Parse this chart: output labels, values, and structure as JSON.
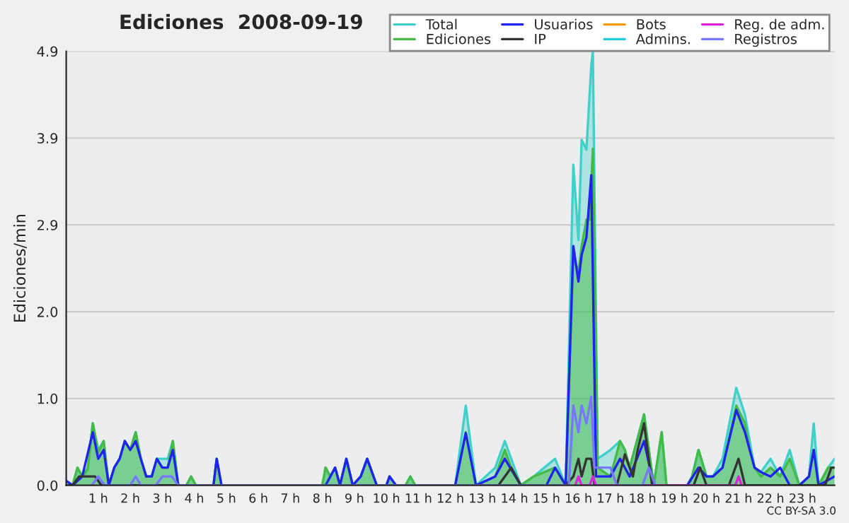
{
  "chart_data": {
    "type": "line",
    "title": "Ediciones  2008-09-19",
    "ylabel": "Ediciones/min",
    "annotations": [
      "CC BY-SA 3.0"
    ],
    "xlim": [
      0,
      24
    ],
    "ylim": [
      0,
      4.9
    ],
    "xticks": [
      {
        "value": 1,
        "label": "1 h"
      },
      {
        "value": 2,
        "label": "2 h"
      },
      {
        "value": 3,
        "label": "3 h"
      },
      {
        "value": 4,
        "label": "4 h"
      },
      {
        "value": 5,
        "label": "5 h"
      },
      {
        "value": 6,
        "label": "6 h"
      },
      {
        "value": 7,
        "label": "7 h"
      },
      {
        "value": 8,
        "label": "8 h"
      },
      {
        "value": 9,
        "label": "9 h"
      },
      {
        "value": 10,
        "label": "10 h"
      },
      {
        "value": 11,
        "label": "11 h"
      },
      {
        "value": 12,
        "label": "12 h"
      },
      {
        "value": 13,
        "label": "13 h"
      },
      {
        "value": 14,
        "label": "14 h"
      },
      {
        "value": 15,
        "label": "15 h"
      },
      {
        "value": 16,
        "label": "16 h"
      },
      {
        "value": 17,
        "label": "17 h"
      },
      {
        "value": 18,
        "label": "18 h"
      },
      {
        "value": 19,
        "label": "19 h"
      },
      {
        "value": 20,
        "label": "20 h"
      },
      {
        "value": 21,
        "label": "21 h"
      },
      {
        "value": 22,
        "label": "22 h"
      },
      {
        "value": 23,
        "label": "23 h"
      }
    ],
    "yticks": [
      {
        "value": 0,
        "label": "0.0"
      },
      {
        "value": 0.98,
        "label": "1.0"
      },
      {
        "value": 1.96,
        "label": "2.0"
      },
      {
        "value": 2.94,
        "label": "2.9"
      },
      {
        "value": 3.92,
        "label": "3.9"
      },
      {
        "value": 4.9,
        "label": "4.9"
      }
    ],
    "grid": "y",
    "legend": "top right",
    "series": [
      {
        "name": "Total",
        "type": "area",
        "color": "#3fd0c9",
        "x": [
          0,
          0.2,
          0.35,
          0.5,
          0.67,
          0.83,
          1.0,
          1.17,
          1.33,
          1.5,
          1.67,
          1.83,
          2.0,
          2.17,
          2.33,
          2.5,
          2.67,
          2.83,
          3.0,
          3.17,
          3.33,
          3.5,
          3.75,
          3.9,
          4.05,
          4.6,
          4.7,
          4.85,
          8.0,
          8.1,
          8.25,
          8.4,
          8.55,
          8.75,
          8.95,
          9.2,
          9.4,
          9.7,
          10.0,
          10.1,
          10.3,
          10.6,
          10.75,
          10.9,
          12.15,
          12.48,
          12.8,
          13.4,
          13.7,
          14.2,
          14.6,
          15.27,
          15.6,
          15.84,
          16.0,
          16.1,
          16.25,
          16.4,
          16.45,
          16.6,
          17.0,
          17.3,
          17.45,
          17.6,
          18.05,
          18.35,
          18.6,
          18.75,
          19.4,
          19.55,
          19.75,
          20.0,
          20.2,
          20.5,
          20.93,
          21.2,
          21.35,
          21.5,
          21.7,
          22.0,
          22.3,
          22.6,
          22.9,
          23.2,
          23.35,
          23.5,
          23.8,
          24
        ],
        "values": [
          0.05,
          0,
          0.2,
          0.1,
          0.2,
          0.7,
          0.4,
          0.5,
          0,
          0.2,
          0.3,
          0.5,
          0.4,
          0.6,
          0.3,
          0.1,
          0.1,
          0.3,
          0.3,
          0.3,
          0.5,
          0,
          0,
          0.1,
          0,
          0,
          0.3,
          0,
          0,
          0.2,
          0.1,
          0.2,
          0,
          0.3,
          0,
          0.1,
          0.3,
          0,
          0,
          0.1,
          0,
          0,
          0.1,
          0,
          0,
          0.9,
          0,
          0.2,
          0.5,
          0,
          0.1,
          0.3,
          0,
          3.62,
          2.77,
          3.9,
          3.79,
          4.74,
          4.9,
          0.3,
          0.4,
          0.5,
          0.4,
          0.2,
          0.8,
          0,
          0.6,
          0,
          0,
          0.1,
          0.4,
          0.1,
          0.1,
          0.3,
          1.1,
          0.8,
          0.5,
          0.2,
          0.15,
          0.3,
          0.1,
          0.4,
          0,
          0.1,
          0.7,
          0,
          0.2,
          0.3
        ]
      },
      {
        "name": "Ediciones",
        "type": "area",
        "color": "#44bb44",
        "x": [
          0,
          0.2,
          0.35,
          0.5,
          0.67,
          0.83,
          1.0,
          1.17,
          1.33,
          1.5,
          1.67,
          1.83,
          2.0,
          2.17,
          2.33,
          2.5,
          2.67,
          2.83,
          3.0,
          3.17,
          3.33,
          3.5,
          3.75,
          3.9,
          4.05,
          4.6,
          4.7,
          4.85,
          8.0,
          8.1,
          8.25,
          8.4,
          8.55,
          8.75,
          8.95,
          9.2,
          9.4,
          9.7,
          10.0,
          10.1,
          10.3,
          10.6,
          10.75,
          10.9,
          12.15,
          12.48,
          12.8,
          13.4,
          13.7,
          13.9,
          14.2,
          14.6,
          15.27,
          15.6,
          15.84,
          16.0,
          16.1,
          16.25,
          16.35,
          16.45,
          16.6,
          17.0,
          17.3,
          17.45,
          17.6,
          18.05,
          18.35,
          18.6,
          18.75,
          19.4,
          19.55,
          19.75,
          20.0,
          20.2,
          20.5,
          20.93,
          21.2,
          21.35,
          21.5,
          21.7,
          22.0,
          22.3,
          22.6,
          22.9,
          23.2,
          23.35,
          23.5,
          23.8,
          24
        ],
        "values": [
          0,
          0,
          0.2,
          0.1,
          0.18,
          0.7,
          0.37,
          0.5,
          0,
          0.2,
          0.3,
          0.5,
          0.4,
          0.6,
          0.3,
          0.1,
          0.1,
          0.3,
          0.2,
          0.2,
          0.5,
          0,
          0,
          0.1,
          0,
          0,
          0.3,
          0,
          0,
          0.2,
          0.1,
          0.2,
          0,
          0.3,
          0,
          0.1,
          0.3,
          0,
          0,
          0.1,
          0,
          0,
          0.1,
          0,
          0,
          0.6,
          0,
          0.1,
          0.4,
          0.2,
          0,
          0.1,
          0.2,
          0,
          2.6,
          2.4,
          2.7,
          3.0,
          3.0,
          3.8,
          0.2,
          0.1,
          0.5,
          0.4,
          0.2,
          0.8,
          0,
          0.6,
          0,
          0,
          0.1,
          0.4,
          0.1,
          0.1,
          0.2,
          0.9,
          0.7,
          0.4,
          0.2,
          0.1,
          0.2,
          0.1,
          0.3,
          0,
          0.1,
          0.4,
          0,
          0.2,
          0.2
        ]
      },
      {
        "name": "Usuarios",
        "color": "#2222ee",
        "x": [
          0,
          0.2,
          0.5,
          0.83,
          1.0,
          1.17,
          1.33,
          1.5,
          1.67,
          1.83,
          2.0,
          2.17,
          2.33,
          2.5,
          2.67,
          2.83,
          3.0,
          3.17,
          3.33,
          3.5,
          4.6,
          4.7,
          4.85,
          8.1,
          8.25,
          8.4,
          8.55,
          8.75,
          8.95,
          9.2,
          9.4,
          9.7,
          10.0,
          10.1,
          10.3,
          12.15,
          12.48,
          12.8,
          13.4,
          13.7,
          14.2,
          15.0,
          15.27,
          15.6,
          15.84,
          16.0,
          16.1,
          16.25,
          16.4,
          16.55,
          17.0,
          17.3,
          17.6,
          18.05,
          18.35,
          19.4,
          19.75,
          20.0,
          20.2,
          20.5,
          20.93,
          21.2,
          21.35,
          21.5,
          21.7,
          22.0,
          22.3,
          22.6,
          22.9,
          23.2,
          23.35,
          23.5,
          24
        ],
        "values": [
          0.05,
          0,
          0.1,
          0.6,
          0.3,
          0.4,
          0,
          0.2,
          0.3,
          0.5,
          0.4,
          0.5,
          0.3,
          0.1,
          0.1,
          0.3,
          0.2,
          0.2,
          0.4,
          0,
          0,
          0.3,
          0,
          0,
          0.1,
          0.2,
          0,
          0.3,
          0,
          0.1,
          0.3,
          0,
          0,
          0.1,
          0,
          0,
          0.59,
          0,
          0.1,
          0.3,
          0,
          0,
          0.2,
          0,
          2.7,
          2.3,
          2.6,
          2.8,
          3.5,
          0.1,
          0.1,
          0.3,
          0.1,
          0.5,
          0,
          0,
          0.2,
          0.1,
          0.1,
          0.2,
          0.85,
          0.6,
          0.4,
          0.2,
          0.15,
          0.1,
          0.2,
          0,
          0,
          0.1,
          0.4,
          0,
          0.1
        ]
      },
      {
        "name": "IP",
        "color": "#333333",
        "x": [
          0,
          0.2,
          0.4,
          0.9,
          1.1,
          13.5,
          13.9,
          14.2,
          15.6,
          15.84,
          16.0,
          16.1,
          16.25,
          16.4,
          16.5,
          17.2,
          17.45,
          17.7,
          17.85,
          18.05,
          18.3,
          19.6,
          19.8,
          20.0,
          20.7,
          21.0,
          21.2,
          23.7,
          23.9,
          24
        ],
        "values": [
          0,
          0,
          0.1,
          0.1,
          0,
          0,
          0.2,
          0,
          0,
          0.1,
          0.3,
          0.1,
          0.3,
          0.3,
          0,
          0,
          0.35,
          0.1,
          0.4,
          0.7,
          0,
          0,
          0.2,
          0,
          0,
          0.3,
          0,
          0,
          0.2,
          0.2
        ]
      },
      {
        "name": "Bots",
        "color": "#ff9900"
      },
      {
        "name": "Admins.",
        "color": "#22ccdd"
      },
      {
        "name": "Reg. de adm.",
        "color": "#dd22dd",
        "x": [
          15.9,
          16.0,
          16.1,
          16.35,
          16.45,
          16.55,
          20.9,
          21.0,
          21.1
        ],
        "values": [
          0,
          0.1,
          0,
          0,
          0.1,
          0,
          0,
          0.1,
          0
        ]
      },
      {
        "name": "Registros",
        "color": "#7777ff",
        "x": [
          0.8,
          1.0,
          1.2,
          2.0,
          2.17,
          2.33,
          2.8,
          3.0,
          3.3,
          3.5,
          15.7,
          15.84,
          16.0,
          16.1,
          16.25,
          16.4,
          16.5,
          16.7,
          17.0,
          17.2,
          18.0,
          18.2,
          18.4
        ],
        "values": [
          0,
          0.1,
          0,
          0,
          0.1,
          0,
          0,
          0.1,
          0.1,
          0,
          0,
          0.9,
          0.6,
          0.9,
          0.7,
          1.0,
          0.2,
          0.2,
          0.2,
          0,
          0,
          0.2,
          0
        ]
      }
    ]
  }
}
